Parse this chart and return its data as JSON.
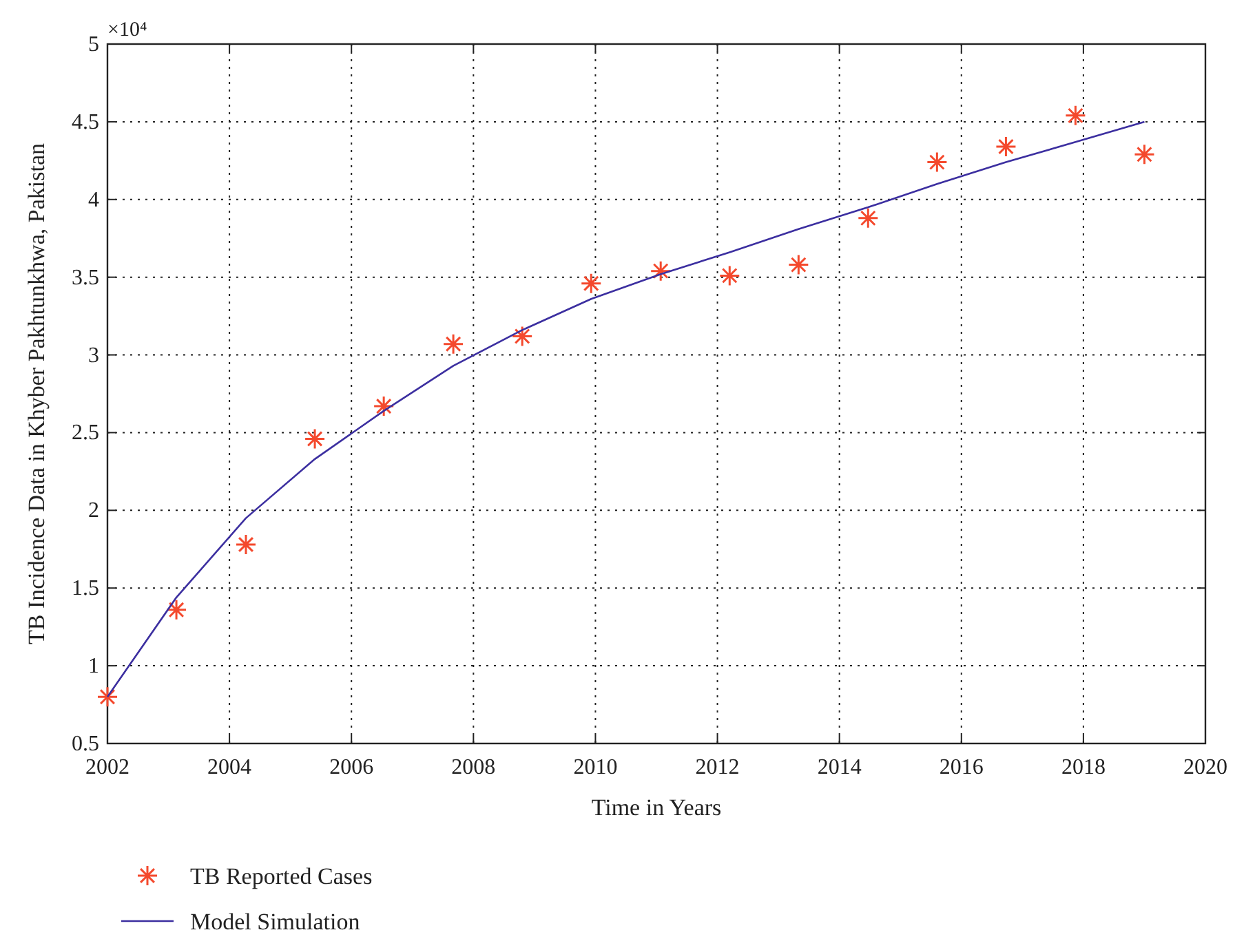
{
  "chart_data": {
    "type": "scatter",
    "xlabel": "Time in Years",
    "ylabel": "TB Incidence Data in Khyber Pakhtunkhwa, Pakistan",
    "annotations": [
      "×10⁴"
    ],
    "xlim": [
      2002,
      2020
    ],
    "xticks": [
      2002,
      2004,
      2006,
      2008,
      2010,
      2012,
      2014,
      2016,
      2018,
      2020
    ],
    "ylim": [
      0.5,
      5
    ],
    "yticks": [
      0.5,
      1,
      1.5,
      2,
      2.5,
      3,
      3.5,
      4,
      4.5,
      5
    ],
    "grid": true,
    "legend": "bottom left",
    "series": [
      {
        "name": "TB Reported Cases",
        "marker": "cross",
        "color": "#f4492d",
        "x": [
          2002,
          2003.13,
          2004.27,
          2005.4,
          2006.53,
          2007.67,
          2008.8,
          2009.93,
          2011.07,
          2012.2,
          2013.33,
          2014.47,
          2015.6,
          2016.73,
          2017.87,
          2019
        ],
        "values": [
          0.8,
          1.36,
          1.78,
          2.46,
          2.67,
          3.07,
          3.12,
          3.46,
          3.54,
          3.51,
          3.58,
          3.88,
          4.24,
          4.34,
          4.54,
          4.29
        ]
      },
      {
        "name": "Model Simulation",
        "type": "line",
        "marker": "none",
        "line_style": "solid",
        "color": "#3c2fa0",
        "x": [
          2002,
          2003.13,
          2004.27,
          2005.4,
          2006.53,
          2007.67,
          2008.8,
          2009.93,
          2011.07,
          2012.2,
          2013.33,
          2014.47,
          2015.6,
          2016.73,
          2017.87,
          2019
        ],
        "values": [
          0.8,
          1.44,
          1.95,
          2.33,
          2.64,
          2.93,
          3.16,
          3.36,
          3.52,
          3.66,
          3.81,
          3.95,
          4.1,
          4.24,
          4.37,
          4.5
        ]
      }
    ]
  }
}
